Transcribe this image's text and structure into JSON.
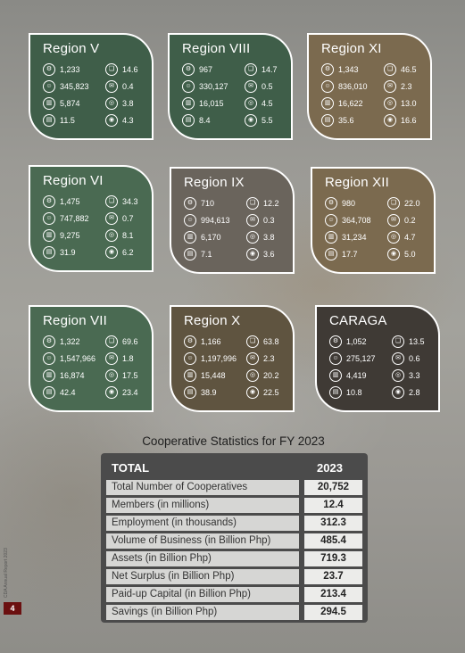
{
  "regions": [
    {
      "name": "Region V",
      "stats": [
        "1,233",
        "14.6",
        "345,823",
        "0.4",
        "5,874",
        "3.8",
        "11.5",
        "4.3"
      ]
    },
    {
      "name": "Region VIII",
      "stats": [
        "967",
        "14.7",
        "330,127",
        "0.5",
        "16,015",
        "4.5",
        "8.4",
        "5.5"
      ]
    },
    {
      "name": "Region XI",
      "stats": [
        "1,343",
        "46.5",
        "836,010",
        "2.3",
        "16,622",
        "13.0",
        "35.6",
        "16.6"
      ]
    },
    {
      "name": "Region VI",
      "stats": [
        "1,475",
        "34.3",
        "747,882",
        "0.7",
        "9,275",
        "8.1",
        "31.9",
        "6.2"
      ]
    },
    {
      "name": "Region IX",
      "stats": [
        "710",
        "12.2",
        "994,613",
        "0.3",
        "6,170",
        "3.8",
        "7.1",
        "3.6"
      ]
    },
    {
      "name": "Region XII",
      "stats": [
        "980",
        "22.0",
        "364,708",
        "0.2",
        "31,234",
        "4.7",
        "17.7",
        "5.0"
      ]
    },
    {
      "name": "Region VII",
      "stats": [
        "1,322",
        "69.6",
        "1,547,966",
        "1.8",
        "16,874",
        "17.5",
        "42.4",
        "23.4"
      ]
    },
    {
      "name": "Region X",
      "stats": [
        "1,166",
        "63.8",
        "1,197,996",
        "2.3",
        "15,448",
        "20.2",
        "38.9",
        "22.5"
      ]
    },
    {
      "name": "CARAGA",
      "stats": [
        "1,052",
        "13.5",
        "275,127",
        "0.6",
        "4,419",
        "3.3",
        "10.8",
        "2.8"
      ]
    }
  ],
  "stat_icons": [
    "cooperatives-icon",
    "volume-icon",
    "members-icon",
    "assets-icon",
    "employment-icon",
    "surplus-icon",
    "business-icon",
    "capital-icon"
  ],
  "stat_glyphs": [
    "⚙",
    "❏",
    "☺",
    "✉",
    "▥",
    "◎",
    "▤",
    "◉"
  ],
  "table": {
    "section_title": "Cooperative Statistics for FY 2023",
    "header_label": "TOTAL",
    "header_year": "2023",
    "rows": [
      {
        "label": "Total Number of Cooperatives",
        "value": "20,752"
      },
      {
        "label": "Members (in millions)",
        "value": "12.4"
      },
      {
        "label": "Employment (in thousands)",
        "value": "312.3"
      },
      {
        "label": "Volume of Business (in Billion Php)",
        "value": "485.4"
      },
      {
        "label": "Assets (in Billion Php)",
        "value": "719.3"
      },
      {
        "label": "Net Surplus (in Billion Php)",
        "value": "23.7"
      },
      {
        "label": "Paid-up Capital (in Billion Php)",
        "value": "213.4"
      },
      {
        "label": "Savings (in Billion Php)",
        "value": "294.5"
      }
    ]
  },
  "side_text": "CDA Annual Report 2023",
  "page_number": "4"
}
